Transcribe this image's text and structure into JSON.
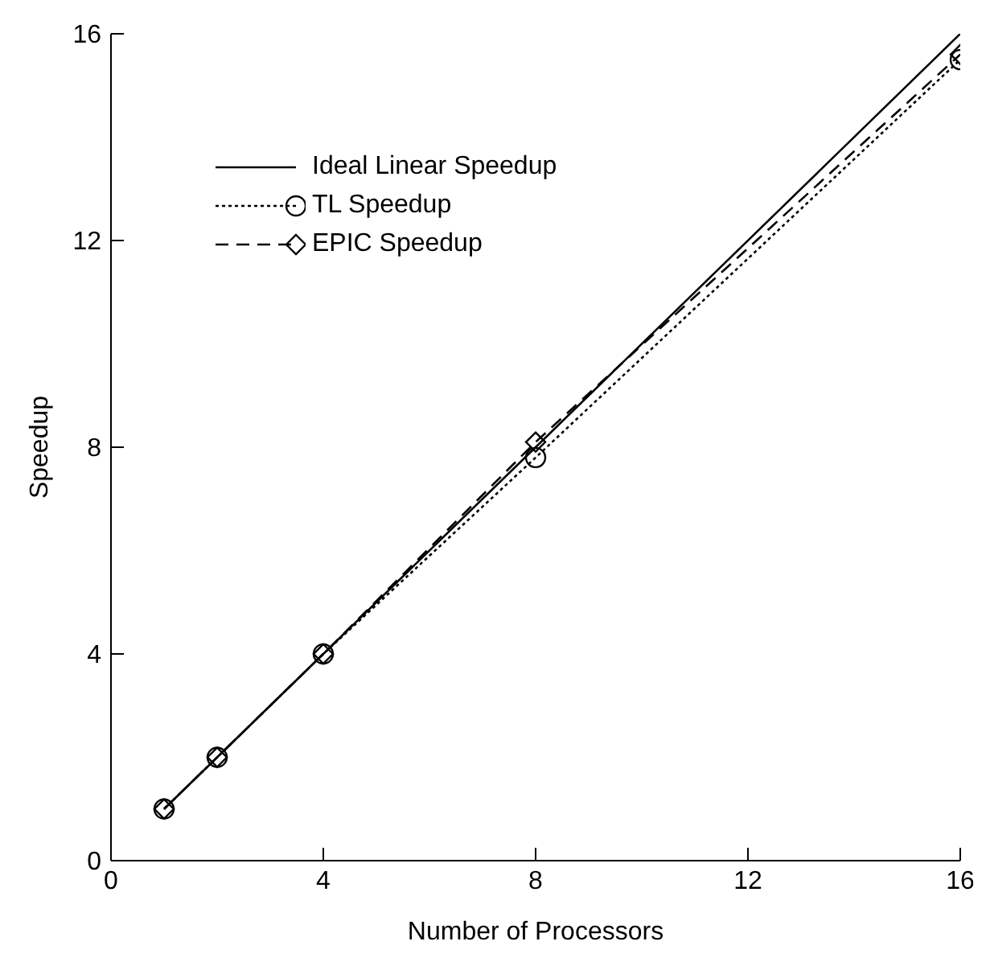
{
  "chart_data": {
    "type": "line",
    "xlabel": "Number of Processors",
    "ylabel": "Speedup",
    "x": [
      1,
      2,
      4,
      8,
      16
    ],
    "series": [
      {
        "name": "TL Speedup",
        "color": "#000000",
        "values": [
          1,
          2,
          4,
          7.8,
          15.5
        ],
        "marker": "circle",
        "line_style": "dotted"
      },
      {
        "name": "EPIC Speedup",
        "color": "#000000",
        "values": [
          1,
          2,
          4,
          8.1,
          15.6
        ],
        "marker": "diamond",
        "line_style": "dashed"
      },
      {
        "name": "Ideal Linear Speedup",
        "color": "#000000",
        "values": [
          1,
          2,
          4,
          8,
          16
        ],
        "marker": "none",
        "line_style": "solid"
      }
    ],
    "xlim": [
      0,
      16
    ],
    "xticks": [
      0,
      4,
      8,
      12,
      16
    ],
    "ylim": [
      0,
      16
    ],
    "yticks": [
      0,
      4,
      8,
      12,
      16
    ],
    "grid": false,
    "legend": "top left"
  }
}
